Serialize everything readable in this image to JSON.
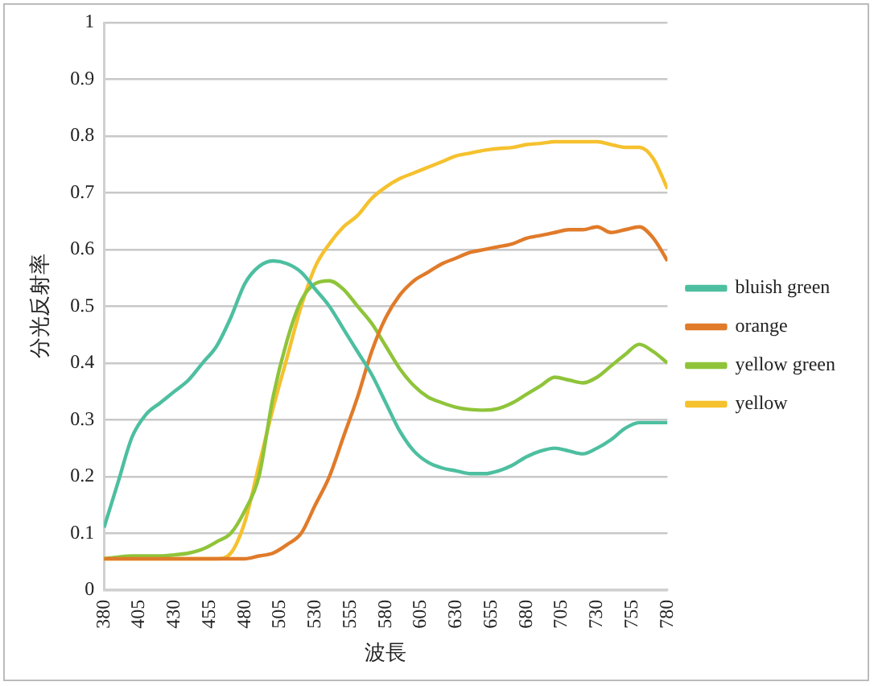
{
  "chart_data": {
    "type": "line",
    "xlabel": "波長",
    "ylabel": "分光反射率",
    "x": [
      380,
      390,
      400,
      410,
      420,
      430,
      440,
      450,
      460,
      470,
      480,
      490,
      500,
      510,
      520,
      530,
      540,
      550,
      560,
      570,
      580,
      590,
      600,
      610,
      620,
      630,
      640,
      650,
      660,
      670,
      680,
      690,
      700,
      710,
      720,
      730,
      740,
      750,
      760,
      770,
      780
    ],
    "series": [
      {
        "name": "bluish green",
        "color": "#4dbfa0",
        "values": [
          0.11,
          0.19,
          0.27,
          0.31,
          0.33,
          0.35,
          0.37,
          0.4,
          0.43,
          0.48,
          0.54,
          0.57,
          0.58,
          0.575,
          0.56,
          0.53,
          0.5,
          0.46,
          0.42,
          0.38,
          0.33,
          0.28,
          0.245,
          0.225,
          0.215,
          0.21,
          0.205,
          0.205,
          0.21,
          0.22,
          0.235,
          0.245,
          0.25,
          0.245,
          0.24,
          0.25,
          0.265,
          0.285,
          0.295,
          0.295,
          0.295
        ]
      },
      {
        "name": "orange",
        "color": "#e07b2a",
        "values": [
          0.055,
          0.055,
          0.055,
          0.055,
          0.055,
          0.055,
          0.055,
          0.055,
          0.055,
          0.055,
          0.055,
          0.06,
          0.065,
          0.08,
          0.1,
          0.15,
          0.2,
          0.27,
          0.34,
          0.42,
          0.48,
          0.52,
          0.545,
          0.56,
          0.575,
          0.585,
          0.595,
          0.6,
          0.605,
          0.61,
          0.62,
          0.625,
          0.63,
          0.635,
          0.635,
          0.64,
          0.63,
          0.635,
          0.64,
          0.62,
          0.58
        ]
      },
      {
        "name": "yellow green",
        "color": "#8fc43a",
        "values": [
          0.055,
          0.058,
          0.06,
          0.06,
          0.06,
          0.062,
          0.065,
          0.072,
          0.085,
          0.1,
          0.14,
          0.2,
          0.34,
          0.44,
          0.51,
          0.54,
          0.545,
          0.53,
          0.5,
          0.47,
          0.43,
          0.39,
          0.36,
          0.34,
          0.33,
          0.322,
          0.318,
          0.317,
          0.32,
          0.33,
          0.345,
          0.36,
          0.375,
          0.37,
          0.365,
          0.375,
          0.395,
          0.415,
          0.433,
          0.42,
          0.4
        ]
      },
      {
        "name": "yellow",
        "color": "#f5c12e",
        "values": [
          0.055,
          0.055,
          0.055,
          0.055,
          0.055,
          0.055,
          0.055,
          0.055,
          0.055,
          0.065,
          0.12,
          0.22,
          0.32,
          0.41,
          0.5,
          0.57,
          0.61,
          0.64,
          0.66,
          0.69,
          0.71,
          0.725,
          0.735,
          0.745,
          0.755,
          0.765,
          0.77,
          0.775,
          0.778,
          0.78,
          0.785,
          0.787,
          0.79,
          0.79,
          0.79,
          0.79,
          0.785,
          0.78,
          0.78,
          0.76,
          0.707
        ]
      }
    ],
    "xlim": [
      380,
      780
    ],
    "xticks": [
      380,
      405,
      430,
      455,
      480,
      505,
      530,
      555,
      580,
      605,
      630,
      655,
      680,
      705,
      730,
      755,
      780
    ],
    "ylim": [
      0,
      1
    ],
    "yticks": [
      0,
      0.1,
      0.2,
      0.3,
      0.4,
      0.5,
      0.6,
      0.7,
      0.8,
      0.9,
      1
    ],
    "grid": "y",
    "legend": "right",
    "marker": "none",
    "line_style": "solid"
  }
}
